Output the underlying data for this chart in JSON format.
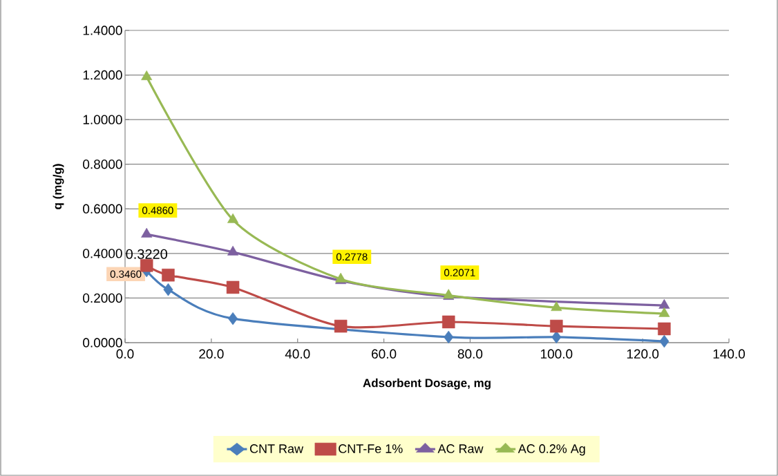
{
  "chart_data": {
    "type": "line",
    "xlabel": "Adsorbent Dosage, mg",
    "ylabel": "q (mg/g)",
    "x": [
      5,
      10,
      25,
      50,
      75,
      100,
      125
    ],
    "series": [
      {
        "name": "CNT Raw",
        "color": "#4a7ebb",
        "marker": "diamond",
        "values": [
          0.322,
          0.238,
          0.108,
          null,
          0.025,
          0.025,
          0.006
        ],
        "value_labels": [
          "0.3220",
          null,
          null,
          null,
          null,
          null,
          null
        ]
      },
      {
        "name": "CNT-Fe 1%",
        "color": "#be4b48",
        "marker": "square",
        "values": [
          0.346,
          0.303,
          0.248,
          0.074,
          0.093,
          0.074,
          0.062
        ],
        "value_labels": [
          "0.3460",
          null,
          null,
          null,
          null,
          null,
          null
        ]
      },
      {
        "name": "AC Raw",
        "color": "#7d60a0",
        "marker": "triangle",
        "values": [
          0.486,
          null,
          0.406,
          0.2778,
          0.2071,
          null,
          0.167
        ],
        "value_labels": [
          "0.4860",
          null,
          null,
          "0.2778",
          "0.2071",
          null,
          null
        ]
      },
      {
        "name": "AC 0.2% Ag",
        "color": "#98b954",
        "marker": "triangle",
        "values": [
          1.192,
          null,
          0.551,
          0.285,
          0.212,
          0.157,
          0.13
        ]
      }
    ],
    "xlim": [
      0,
      140
    ],
    "xticks": [
      {
        "value": 0,
        "label": "0.0"
      },
      {
        "value": 20,
        "label": "20.0"
      },
      {
        "value": 40,
        "label": "40.0"
      },
      {
        "value": 60,
        "label": "60.0"
      },
      {
        "value": 80,
        "label": "80.0"
      },
      {
        "value": 100,
        "label": "100.0"
      },
      {
        "value": 120,
        "label": "120.0"
      },
      {
        "value": 140,
        "label": "140.0"
      }
    ],
    "ylim": [
      0,
      1.4
    ],
    "yticks": [
      {
        "value": 0,
        "label": "0.0000"
      },
      {
        "value": 0.2,
        "label": "0.2000"
      },
      {
        "value": 0.4,
        "label": "0.4000"
      },
      {
        "value": 0.6,
        "label": "0.6000"
      },
      {
        "value": 0.8,
        "label": "0.8000"
      },
      {
        "value": 1.0,
        "label": "1.0000"
      },
      {
        "value": 1.2,
        "label": "1.2000"
      },
      {
        "value": 1.4,
        "label": "1.4000"
      }
    ],
    "grid": "y",
    "legend": "bottom",
    "line_style": "solid"
  }
}
